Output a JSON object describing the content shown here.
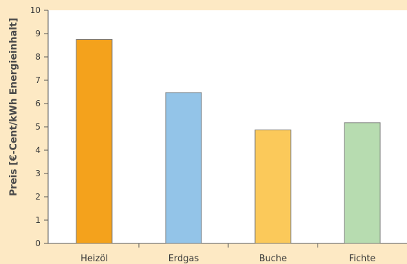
{
  "chart_data": {
    "type": "bar",
    "title": "",
    "xlabel": "",
    "ylabel": "Preis [€-Cent/kWh Energieinhalt]",
    "categories": [
      "Heizöl",
      "Erdgas",
      "Buche",
      "Fichte"
    ],
    "values": [
      8.75,
      6.47,
      4.87,
      5.18
    ],
    "bar_colors": [
      "#f4a21c",
      "#93c4e8",
      "#fbc95a",
      "#b7dcb0"
    ],
    "ylim": [
      0,
      10
    ],
    "yticks": [
      "0",
      "1",
      "2",
      "3",
      "4",
      "5",
      "6",
      "7",
      "8",
      "9",
      "10"
    ],
    "grid": false,
    "legend": "none"
  },
  "colors": {
    "page_background": "#fde9c4",
    "plot_background": "#ffffff",
    "axis": "#555555",
    "bar_outline": "#7a7a7a"
  }
}
